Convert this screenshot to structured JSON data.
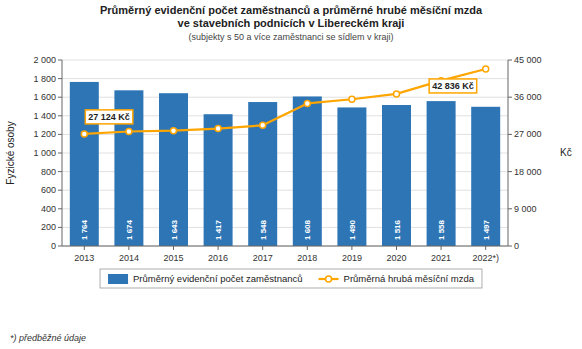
{
  "chart_data": {
    "type": "bar",
    "title": [
      "Průměrný evidenční počet zaměstnanců a průměrné hrubé měsíční mzda",
      "ve stavebních podnicích v Libereckém kraji"
    ],
    "subtitle": "(subjekty s 50 a více zaměstnanci se sídlem v kraji)",
    "footnote": "*) předběžné údaje",
    "categories": [
      "2013",
      "2014",
      "2015",
      "2016",
      "2017",
      "2018",
      "2019",
      "2020",
      "2021",
      "2022*)"
    ],
    "series": [
      {
        "name": "Průměrný evidenční počet zaměstnanců",
        "type": "bar",
        "color": "#2E75B6",
        "values": [
          1764,
          1674,
          1643,
          1417,
          1548,
          1608,
          1490,
          1516,
          1558,
          1497
        ],
        "data_labels": true,
        "value_labels": [
          "1 764",
          "1 674",
          "1 643",
          "1 417",
          "1 548",
          "1 608",
          "1 490",
          "1 516",
          "1 558",
          "1 497"
        ]
      },
      {
        "name": "Průměrná hrubá měsíční mzda",
        "type": "line",
        "color": "#FFA500",
        "marker": "circle",
        "axis": "y2",
        "values": [
          27124,
          27700,
          27900,
          28400,
          29200,
          34500,
          35500,
          36800,
          40000,
          42836
        ]
      }
    ],
    "y_label": "Fyzické osoby",
    "y2_label": "Kč",
    "ylim": [
      0,
      2000
    ],
    "yticks": [
      0,
      200,
      400,
      600,
      800,
      {
        "value": 1000,
        "label": "1 000"
      },
      {
        "value": 1200,
        "label": "1 200"
      },
      {
        "value": 1400,
        "label": "1 400"
      },
      {
        "value": 1600,
        "label": "1 600"
      },
      {
        "value": 1800,
        "label": "1 800"
      },
      {
        "value": 2000,
        "label": "2 000"
      }
    ],
    "y2lim": [
      0,
      45000
    ],
    "y2ticks": [
      0,
      {
        "value": 9000,
        "label": "9 000"
      },
      {
        "value": 18000,
        "label": "18 000"
      },
      {
        "value": 27000,
        "label": "27 000"
      },
      {
        "value": 36000,
        "label": "36 000"
      },
      {
        "value": 45000,
        "label": "45 000"
      }
    ],
    "annotations": [
      {
        "text": "27 124 Kč",
        "x": "2013",
        "y": 27124,
        "axis": "y2"
      },
      {
        "text": "42 836 Kč",
        "x": "2022*)",
        "y": 42836,
        "axis": "y2"
      }
    ],
    "grid": true,
    "legend": "bottom"
  }
}
